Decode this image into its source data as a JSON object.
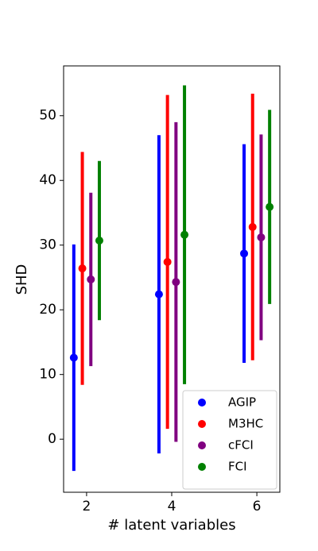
{
  "chart_data": {
    "type": "errorbar",
    "xlabel": "# latent variables",
    "ylabel": "SHD",
    "xlim": [
      1.46,
      6.54
    ],
    "xticks": [
      2,
      4,
      6
    ],
    "ylim": [
      -8.2,
      57.7
    ],
    "yticks": [
      0,
      10,
      20,
      30,
      40,
      50
    ],
    "legend": "lower right",
    "series": [
      {
        "name": "AGIP",
        "color": "blue",
        "x": [
          1.7,
          3.7,
          5.7
        ],
        "values": [
          12.6,
          22.4,
          28.7
        ],
        "errors": [
          17.5,
          24.6,
          16.9
        ]
      },
      {
        "name": "M3HC",
        "color": "red",
        "x": [
          1.9,
          3.9,
          5.9
        ],
        "values": [
          26.4,
          27.4,
          32.8
        ],
        "errors": [
          18,
          25.8,
          20.6
        ]
      },
      {
        "name": "cFCI",
        "color": "purple",
        "x": [
          2.1,
          4.1,
          6.1
        ],
        "values": [
          24.7,
          24.3,
          31.2
        ],
        "errors": [
          13.4,
          24.7,
          15.9
        ]
      },
      {
        "name": "FCI",
        "color": "green",
        "x": [
          2.3,
          4.3,
          6.3
        ],
        "values": [
          30.7,
          31.6,
          35.9
        ],
        "errors": [
          12.3,
          23.1,
          15
        ]
      }
    ]
  }
}
